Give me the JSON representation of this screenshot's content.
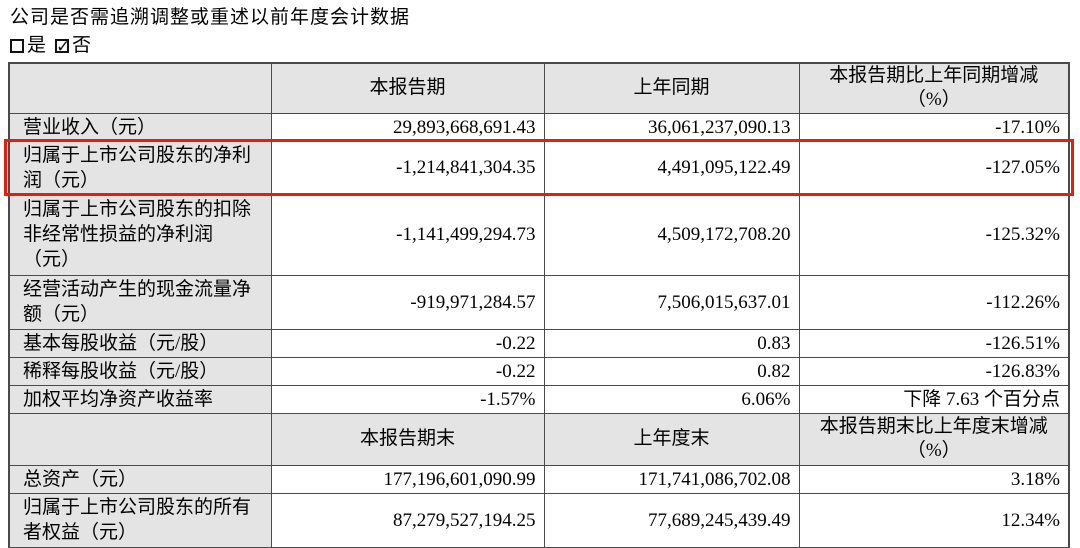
{
  "meta": {
    "question": "公司是否需追溯调整或重述以前年度会计数据"
  },
  "restate_options": [
    {
      "label": "是",
      "checked": false
    },
    {
      "label": "否",
      "checked": true
    }
  ],
  "table": {
    "sections": [
      {
        "header": [
          "",
          "本报告期",
          "上年同期",
          "本报告期比上年同期增减（%）"
        ],
        "rows": [
          {
            "cells": [
              "营业收入（元）",
              "29,893,668,691.43",
              "36,061,237,090.13",
              "-17.10%"
            ],
            "highlight": false
          },
          {
            "cells": [
              "归属于上市公司股东的净利润（元）",
              "-1,214,841,304.35",
              "4,491,095,122.49",
              "-127.05%"
            ],
            "highlight": true
          },
          {
            "cells": [
              "归属于上市公司股东的扣除非经常性损益的净利润（元）",
              "-1,141,499,294.73",
              "4,509,172,708.20",
              "-125.32%"
            ],
            "highlight": false
          },
          {
            "cells": [
              "经营活动产生的现金流量净额（元）",
              "-919,971,284.57",
              "7,506,015,637.01",
              "-112.26%"
            ],
            "highlight": false
          },
          {
            "cells": [
              "基本每股收益（元/股）",
              "-0.22",
              "0.83",
              "-126.51%"
            ],
            "highlight": false
          },
          {
            "cells": [
              "稀释每股收益（元/股）",
              "-0.22",
              "0.82",
              "-126.83%"
            ],
            "highlight": false
          },
          {
            "cells": [
              "加权平均净资产收益率",
              "-1.57%",
              "6.06%",
              "下降 7.63 个百分点"
            ],
            "highlight": false
          }
        ]
      },
      {
        "header": [
          "",
          "本报告期末",
          "上年度末",
          "本报告期末比上年度末增减（%）"
        ],
        "rows": [
          {
            "cells": [
              "总资产（元）",
              "177,196,601,090.99",
              "171,741,086,702.08",
              "3.18%"
            ],
            "highlight": false
          },
          {
            "cells": [
              "归属于上市公司股东的所有者权益（元）",
              "87,279,527,194.25",
              "77,689,245,439.49",
              "12.34%"
            ],
            "highlight": false
          }
        ]
      }
    ]
  },
  "colors": {
    "shaded_cell_bg": "#e4e4e4",
    "table_border": "#4a4a4a",
    "highlight_red": "#ea1c0d"
  }
}
